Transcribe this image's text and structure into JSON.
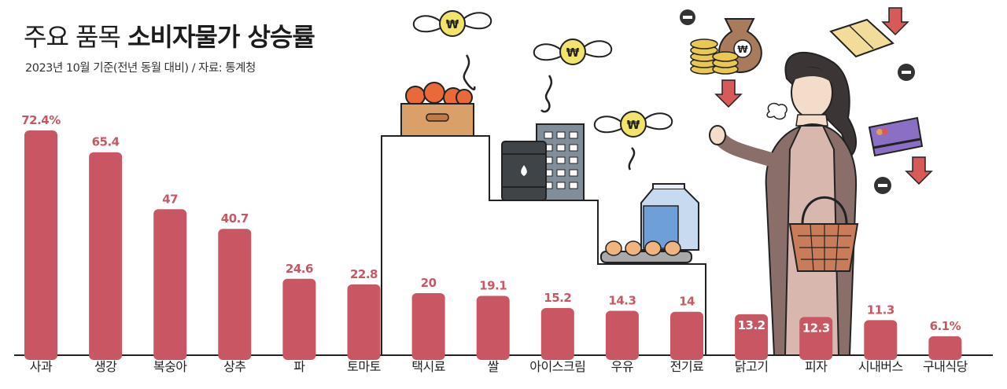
{
  "title_light": "주요 품목",
  "title_bold": "소비자물가 상승률",
  "subtitle": "2023년 10월 기준(전년 동월 대비) / 자료: 통계청",
  "colors": {
    "bar": "#c95763",
    "label": "#c95763",
    "axis": "#222222",
    "inside_label": "#ffffff"
  },
  "chart_data": {
    "type": "bar",
    "title": "주요 품목 소비자물가 상승률",
    "subtitle": "2023년 10월 기준(전년 동월 대비) / 자료: 통계청",
    "categories": [
      "사과",
      "생강",
      "복숭아",
      "상추",
      "파",
      "토마토",
      "택시료",
      "쌀",
      "아이스크림",
      "우유",
      "전기료",
      "닭고기",
      "피자",
      "시내버스",
      "구내식당"
    ],
    "values": [
      72.4,
      65.4,
      47,
      40.7,
      24.6,
      22.8,
      20,
      19.1,
      15.2,
      14.3,
      14,
      13.2,
      12.3,
      11.3,
      6.1
    ],
    "value_labels": [
      "72.4%",
      "65.4",
      "47",
      "40.7",
      "24.6",
      "22.8",
      "20",
      "19.1",
      "15.2",
      "14.3",
      "14",
      "13.2",
      "12.3",
      "11.3",
      "6.1%"
    ],
    "label_inside": [
      false,
      false,
      false,
      false,
      false,
      false,
      false,
      false,
      false,
      false,
      false,
      true,
      true,
      false,
      false
    ],
    "ylim": [
      0,
      80
    ],
    "grid": false,
    "legend": "none"
  }
}
